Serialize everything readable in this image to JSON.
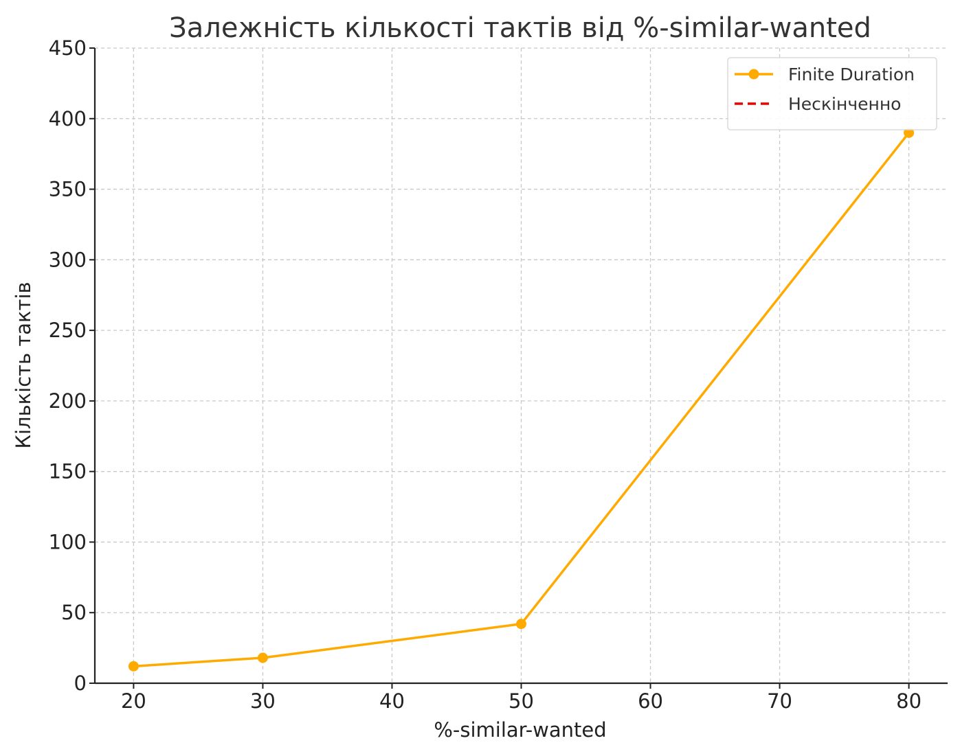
{
  "chart_data": {
    "type": "line",
    "title": "Залежність кількості тактів від %-similar-wanted",
    "xlabel": "%-similar-wanted",
    "ylabel": "Кількість тактів",
    "xlim": [
      17,
      83
    ],
    "ylim": [
      0,
      450
    ],
    "x_ticks": [
      20,
      30,
      40,
      50,
      60,
      70,
      80
    ],
    "y_ticks": [
      0,
      50,
      100,
      150,
      200,
      250,
      300,
      350,
      400,
      450
    ],
    "grid": true,
    "legend_position": "top-right",
    "series": [
      {
        "name": "Finite Duration",
        "color": "#FFAA00",
        "marker": "circle",
        "line_style": "solid",
        "x": [
          20,
          30,
          50,
          80
        ],
        "y": [
          12,
          18,
          42,
          390
        ]
      },
      {
        "name": "Нескінченно",
        "color": "#EE0000",
        "marker": "none",
        "line_style": "dashed",
        "x": [],
        "y": []
      }
    ]
  }
}
